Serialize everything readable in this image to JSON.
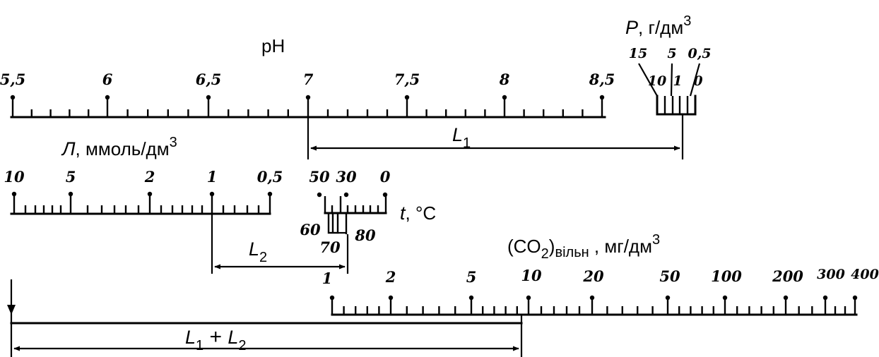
{
  "scales": {
    "ph": {
      "title": "pH",
      "labels": [
        "5,5",
        "6",
        "6,5",
        "7",
        "7,5",
        "8",
        "8,5"
      ]
    },
    "p": {
      "title": "P",
      "unit": ", г/дм",
      "unit_sup": "3",
      "labels_top": [
        "15",
        "5",
        "0,5"
      ],
      "labels_inner": [
        "10",
        "1",
        "0"
      ]
    },
    "l": {
      "title": "Л",
      "unit": ", ммоль/дм",
      "unit_sup": "3",
      "labels": [
        "10",
        "5",
        "2",
        "1",
        "0,5"
      ]
    },
    "t": {
      "title": "t",
      "unit": ", °C",
      "labels_top": [
        "50",
        "30",
        "0"
      ],
      "labels_bottom": [
        "60",
        "70",
        "80"
      ]
    },
    "co2": {
      "title": "(CO",
      "title_sub": "2",
      "title_after": ")",
      "title_subscript": "вільн",
      "unit": " , мг/дм",
      "unit_sup": "3",
      "labels": [
        "1",
        "2",
        "5",
        "10",
        "20",
        "50",
        "100",
        "200",
        "300",
        "400"
      ]
    }
  },
  "distances": {
    "l1": {
      "letter": "L",
      "sub": "1"
    },
    "l2": {
      "letter": "L",
      "sub": "2"
    },
    "l1l2": {
      "letter1": "L",
      "sub1": "1",
      "plus": " + ",
      "letter2": "L",
      "sub2": "2"
    }
  }
}
